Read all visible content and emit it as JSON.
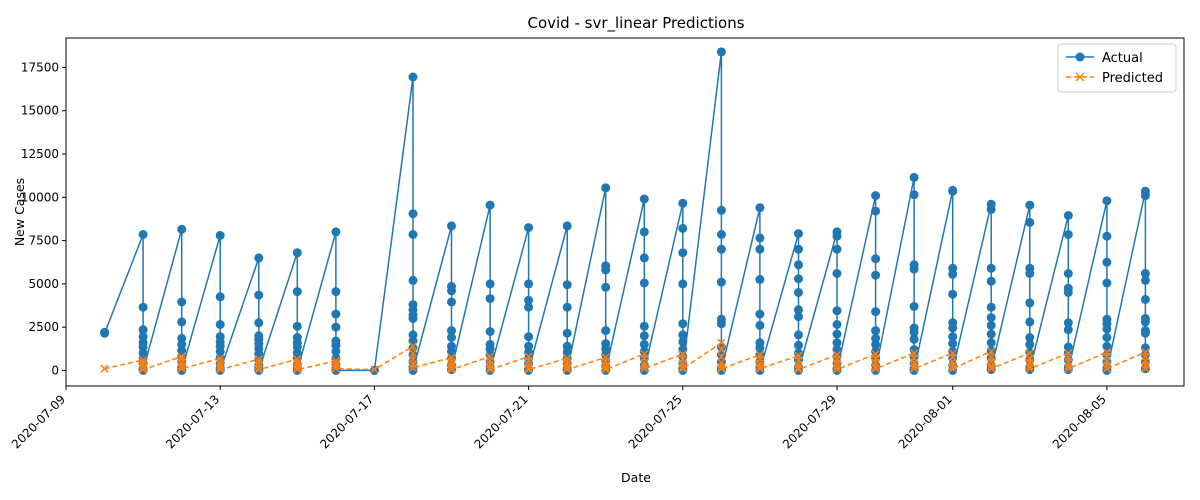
{
  "chart_data": {
    "type": "line",
    "title": "Covid - svr_linear Predictions",
    "xlabel": "Date",
    "ylabel": "New Cases",
    "legend_position": "top-right",
    "grid": false,
    "xlim": [
      "2020-07-09",
      "2020-08-07"
    ],
    "ylim": [
      -900,
      19200
    ],
    "x_ticks": [
      "2020-07-09",
      "2020-07-13",
      "2020-07-17",
      "2020-07-21",
      "2020-07-25",
      "2020-07-29",
      "2020-08-01",
      "2020-08-05"
    ],
    "y_ticks": [
      "0",
      "2500",
      "5000",
      "7500",
      "10000",
      "12500",
      "15000",
      "17500"
    ],
    "dates": [
      "2020-07-10",
      "2020-07-11",
      "2020-07-12",
      "2020-07-13",
      "2020-07-14",
      "2020-07-15",
      "2020-07-16",
      "2020-07-17",
      "2020-07-18",
      "2020-07-19",
      "2020-07-20",
      "2020-07-21",
      "2020-07-22",
      "2020-07-23",
      "2020-07-24",
      "2020-07-25",
      "2020-07-26",
      "2020-07-27",
      "2020-07-28",
      "2020-07-29",
      "2020-07-30",
      "2020-07-31",
      "2020-08-01",
      "2020-08-02",
      "2020-08-03",
      "2020-08-04",
      "2020-08-05",
      "2020-08-06"
    ],
    "series": [
      {
        "name": "Actual",
        "color": "#1f77b4",
        "marker": "circle",
        "linestyle": "solid",
        "values": [
          [
            2200,
            2150
          ],
          [
            7850,
            3650,
            2350,
            1950,
            1600,
            1350,
            1000,
            700,
            400,
            100,
            0
          ],
          [
            8150,
            3950,
            2800,
            1850,
            1500,
            1150,
            800,
            500,
            200,
            50,
            0
          ],
          [
            7800,
            4250,
            2650,
            1950,
            1650,
            1400,
            1100,
            750,
            400,
            150,
            50,
            0
          ],
          [
            6500,
            4350,
            2750,
            2000,
            1800,
            1550,
            1250,
            950,
            600,
            300,
            100,
            0
          ],
          [
            6800,
            4550,
            2550,
            1900,
            1600,
            1350,
            1000,
            700,
            350,
            100,
            0
          ],
          [
            8000,
            4550,
            3250,
            2500,
            1700,
            1450,
            1100,
            700,
            350,
            100,
            50,
            0
          ],
          [
            0,
            0
          ],
          [
            16950,
            9050,
            7850,
            5200,
            3800,
            3500,
            3200,
            3000,
            2050,
            1700,
            1300,
            900,
            500,
            200,
            0
          ],
          [
            8350,
            4850,
            4600,
            3950,
            2300,
            1900,
            1400,
            1100,
            700,
            300,
            50
          ],
          [
            9550,
            5000,
            4150,
            2250,
            1500,
            1250,
            900,
            500,
            200,
            0
          ],
          [
            8250,
            5000,
            4050,
            3650,
            1950,
            1400,
            1050,
            700,
            400,
            100,
            0
          ],
          [
            8350,
            4950,
            3650,
            2150,
            1400,
            1050,
            700,
            400,
            100,
            0
          ],
          [
            10550,
            6050,
            5800,
            4800,
            2300,
            1550,
            1250,
            900,
            550,
            250,
            0
          ],
          [
            9900,
            8000,
            6500,
            5050,
            2550,
            2000,
            1500,
            1100,
            700,
            300,
            0
          ],
          [
            9650,
            8200,
            6800,
            5000,
            2700,
            2050,
            1650,
            1200,
            800,
            400,
            100,
            0
          ],
          [
            18400,
            9250,
            7850,
            7000,
            5100,
            2950,
            2700,
            1350,
            900,
            500,
            100,
            0
          ],
          [
            9400,
            7650,
            7000,
            5250,
            3250,
            2600,
            1600,
            1300,
            900,
            500,
            200,
            0
          ],
          [
            7900,
            7000,
            6100,
            5300,
            4500,
            3500,
            3100,
            2050,
            1450,
            1000,
            600,
            200,
            0
          ],
          [
            8000,
            7750,
            7000,
            5600,
            3450,
            2650,
            2100,
            1600,
            1200,
            800,
            400,
            100,
            0
          ],
          [
            10100,
            9200,
            6450,
            5500,
            3400,
            2300,
            1850,
            1500,
            1100,
            700,
            300,
            0
          ],
          [
            11150,
            10150,
            6100,
            5850,
            3700,
            2450,
            2200,
            1800,
            1200,
            800,
            400,
            100,
            0
          ],
          [
            10400,
            10350,
            5900,
            5550,
            4400,
            2750,
            2450,
            1950,
            1550,
            1100,
            700,
            300,
            0
          ],
          [
            9600,
            9300,
            5900,
            5150,
            3650,
            3050,
            2600,
            2100,
            1600,
            1150,
            700,
            300,
            50
          ],
          [
            9550,
            8550,
            5900,
            5600,
            3900,
            2800,
            1900,
            1500,
            1050,
            600,
            200,
            50
          ],
          [
            8950,
            7850,
            5600,
            4750,
            4500,
            2750,
            2350,
            1350,
            1000,
            600,
            200,
            50
          ],
          [
            9800,
            7750,
            6250,
            5050,
            2950,
            2700,
            2400,
            1900,
            1400,
            900,
            500,
            150,
            0
          ],
          [
            10350,
            10100,
            5600,
            5200,
            4100,
            3000,
            2800,
            2300,
            2150,
            1300,
            900,
            500,
            100
          ]
        ]
      },
      {
        "name": "Predicted",
        "color": "#ff7f0e",
        "marker": "x",
        "linestyle": "dashed",
        "values": [
          [
            100
          ],
          [
            600,
            450,
            300,
            150,
            50
          ],
          [
            800,
            650,
            450,
            250,
            100
          ],
          [
            700,
            500,
            300,
            150,
            50
          ],
          [
            650,
            450,
            250,
            100,
            50
          ],
          [
            650,
            450,
            300,
            150,
            50
          ],
          [
            550,
            400,
            250,
            100
          ],
          [
            50
          ],
          [
            1400,
            1000,
            650,
            350,
            150
          ],
          [
            750,
            500,
            300,
            150,
            50
          ],
          [
            800,
            550,
            350,
            150,
            50
          ],
          [
            800,
            550,
            350,
            150,
            50
          ],
          [
            700,
            500,
            300,
            150,
            50
          ],
          [
            750,
            500,
            300,
            150,
            50
          ],
          [
            950,
            700,
            450,
            250,
            100
          ],
          [
            950,
            650,
            400,
            200,
            100
          ],
          [
            1600,
            1200,
            800,
            450,
            200,
            100
          ],
          [
            900,
            650,
            400,
            200,
            100
          ],
          [
            850,
            600,
            350,
            150,
            50
          ],
          [
            900,
            650,
            400,
            200,
            50
          ],
          [
            950,
            700,
            450,
            200,
            100
          ],
          [
            1000,
            700,
            450,
            250,
            100
          ],
          [
            1000,
            750,
            500,
            250,
            100
          ],
          [
            1100,
            750,
            500,
            250,
            100
          ],
          [
            1000,
            700,
            450,
            250,
            100
          ],
          [
            1000,
            750,
            500,
            250,
            100
          ],
          [
            1050,
            800,
            550,
            300,
            100
          ],
          [
            1050,
            800,
            550,
            300,
            100
          ]
        ]
      }
    ]
  }
}
